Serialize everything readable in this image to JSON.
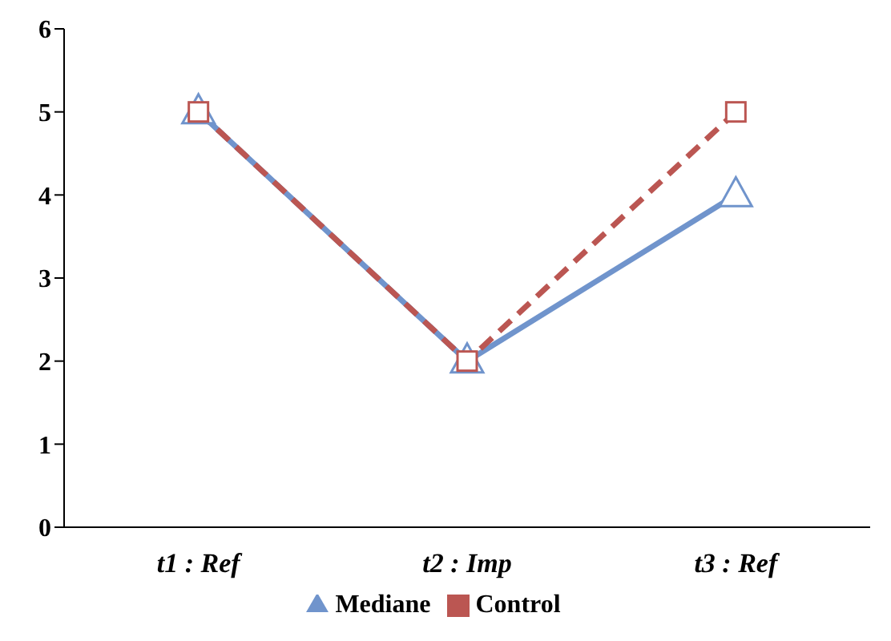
{
  "chart_data": {
    "type": "line",
    "categories": [
      "t1 : Ref",
      "t2 : Imp",
      "t3 : Ref"
    ],
    "series": [
      {
        "name": "Mediane",
        "color": "#7094cc",
        "values": [
          5,
          2,
          4
        ],
        "marker": "triangle",
        "line_style": "solid"
      },
      {
        "name": "Control",
        "color": "#bb5652",
        "values": [
          5,
          2,
          5
        ],
        "marker": "square",
        "line_style": "dashed"
      }
    ],
    "ylim": [
      0,
      6
    ],
    "yticks": [
      0,
      1,
      2,
      3,
      4,
      5,
      6
    ],
    "grid": false,
    "legend": "bottom"
  }
}
